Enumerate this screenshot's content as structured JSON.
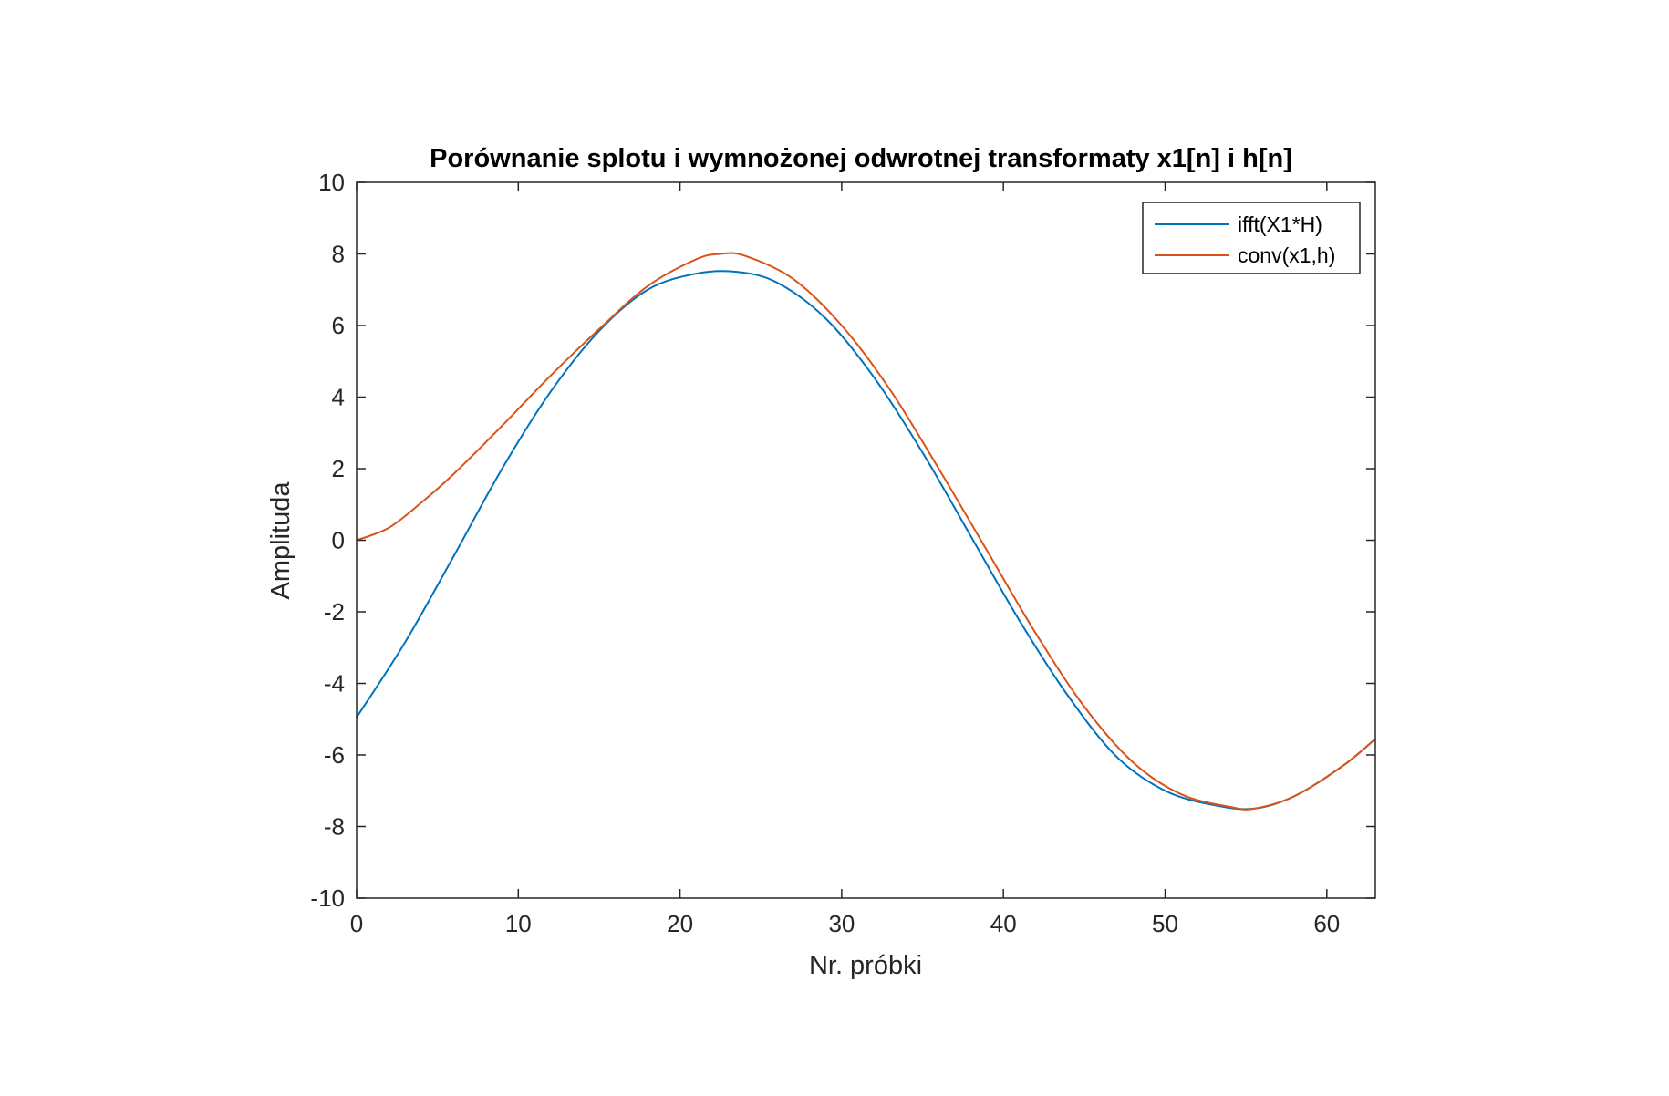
{
  "chart_data": {
    "type": "line",
    "title": "Porównanie splotu i wymnożonej odwrotnej transformaty x1[n] i h[n]",
    "xlabel": "Nr. próbki",
    "ylabel": "Amplituda",
    "xlim": [
      0,
      63
    ],
    "ylim": [
      -10,
      10
    ],
    "xticks": [
      0,
      10,
      20,
      30,
      40,
      50,
      60
    ],
    "xtick_labels": [
      "0",
      "10",
      "20",
      "30",
      "40",
      "50",
      "60"
    ],
    "yticks": [
      10,
      8,
      6,
      4,
      2,
      0,
      -2,
      -4,
      -6,
      -8,
      -10
    ],
    "ytick_labels": [
      "10",
      "8",
      "6",
      "4",
      "2",
      "0",
      "-2",
      "-4",
      "-6",
      "-8",
      "-10"
    ],
    "grid": false,
    "legend_position": "top-right",
    "series": [
      {
        "name": "ifft(X1*H)",
        "color": "#0072BD",
        "x": [
          0,
          3,
          6,
          9,
          12,
          15,
          18,
          21,
          23.5,
          26,
          29,
          32,
          35,
          38,
          41,
          44,
          47,
          50,
          53,
          55.5,
          58,
          61,
          63
        ],
        "y": [
          -4.95,
          -2.85,
          -0.45,
          2.0,
          4.15,
          5.85,
          7.0,
          7.45,
          7.5,
          7.2,
          6.2,
          4.55,
          2.45,
          0.1,
          -2.25,
          -4.35,
          -6.05,
          -7.0,
          -7.4,
          -7.5,
          -7.15,
          -6.3,
          -5.55
        ]
      },
      {
        "name": "conv(x1,h)",
        "color": "#D95319",
        "x": [
          0,
          2,
          4,
          6,
          9,
          12,
          15,
          18,
          21,
          22.5,
          24,
          27,
          30,
          33,
          36,
          39,
          42,
          45,
          48,
          51,
          54,
          55.5,
          58,
          61,
          63
        ],
        "y": [
          0.0,
          0.35,
          1.05,
          1.85,
          3.2,
          4.6,
          5.9,
          7.1,
          7.85,
          8.0,
          7.95,
          7.3,
          6.0,
          4.2,
          2.0,
          -0.3,
          -2.6,
          -4.65,
          -6.2,
          -7.1,
          -7.45,
          -7.5,
          -7.15,
          -6.3,
          -5.55
        ]
      }
    ]
  }
}
